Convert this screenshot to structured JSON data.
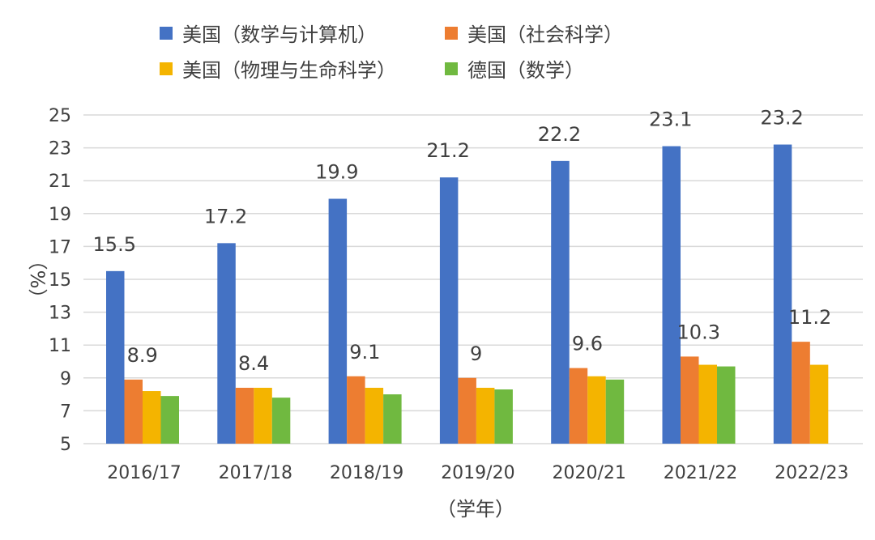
{
  "chart_data": {
    "type": "bar",
    "title": "",
    "xlabel": "（学年）",
    "ylabel": "（%）",
    "ylim": [
      5,
      25
    ],
    "yticks": [
      5,
      7,
      9,
      11,
      13,
      15,
      17,
      19,
      21,
      23,
      25
    ],
    "grid": true,
    "legend_position": "top",
    "categories": [
      "2016/17",
      "2017/18",
      "2018/19",
      "2019/20",
      "2020/21",
      "2021/22",
      "2022/23"
    ],
    "series": [
      {
        "name": "美国（数学与计算机）",
        "color": "#4472c4",
        "values": [
          15.5,
          17.2,
          19.9,
          21.2,
          22.2,
          23.1,
          23.2
        ],
        "labels": [
          "15.5",
          "17.2",
          "19.9",
          "21.2",
          "22.2",
          "23.1",
          "23.2"
        ]
      },
      {
        "name": "美国（社会科学）",
        "color": "#ed7d31",
        "values": [
          8.9,
          8.4,
          9.1,
          9.0,
          9.6,
          10.3,
          11.2
        ],
        "labels": [
          "8.9",
          "8.4",
          "9.1",
          "9",
          "9.6",
          "10.3",
          "11.2"
        ]
      },
      {
        "name": "美国（物理与生命科学）",
        "color": "#f4b400",
        "values": [
          8.2,
          8.4,
          8.4,
          8.4,
          9.1,
          9.8,
          9.8
        ],
        "labels": []
      },
      {
        "name": "德国（数学）",
        "color": "#70b940",
        "values": [
          7.9,
          7.8,
          8.0,
          8.3,
          8.9,
          9.7,
          null
        ],
        "labels": []
      }
    ]
  }
}
